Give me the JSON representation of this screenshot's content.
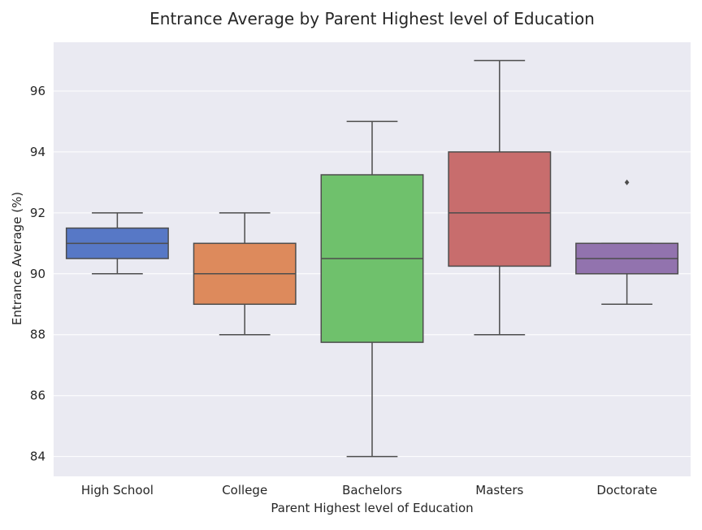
{
  "chart_data": {
    "type": "box",
    "title": "Entrance Average by Parent Highest level of Education",
    "xlabel": "Parent Highest level of Education",
    "ylabel": "Entrance Average (%)",
    "categories": [
      "High School",
      "College",
      "Bachelors",
      "Masters",
      "Doctorate"
    ],
    "ylim": [
      83.35,
      97.6
    ],
    "yticks": [
      84,
      86,
      88,
      90,
      92,
      94,
      96
    ],
    "grid": true,
    "legend": "none",
    "boxes": [
      {
        "category": "High School",
        "whisker_low": 90,
        "q1": 90.5,
        "median": 91,
        "q3": 91.5,
        "whisker_high": 92,
        "outliers": [],
        "color": "#5778c6"
      },
      {
        "category": "College",
        "whisker_low": 88,
        "q1": 89,
        "median": 90,
        "q3": 91,
        "whisker_high": 92,
        "outliers": [],
        "color": "#dd8a5c"
      },
      {
        "category": "Bachelors",
        "whisker_low": 84,
        "q1": 87.75,
        "median": 90.5,
        "q3": 93.25,
        "whisker_high": 95,
        "outliers": [],
        "color": "#6fc16c"
      },
      {
        "category": "Masters",
        "whisker_low": 88,
        "q1": 90.25,
        "median": 92,
        "q3": 94,
        "whisker_high": 97,
        "outliers": [],
        "color": "#c86d6d"
      },
      {
        "category": "Doctorate",
        "whisker_low": 89,
        "q1": 90,
        "median": 90.5,
        "q3": 91,
        "whisker_high": 91,
        "outliers": [
          93
        ],
        "color": "#9273ae"
      }
    ],
    "colors": {
      "background": "#eaeaf2",
      "grid": "#ffffff",
      "line": "#4d4d4d"
    }
  }
}
